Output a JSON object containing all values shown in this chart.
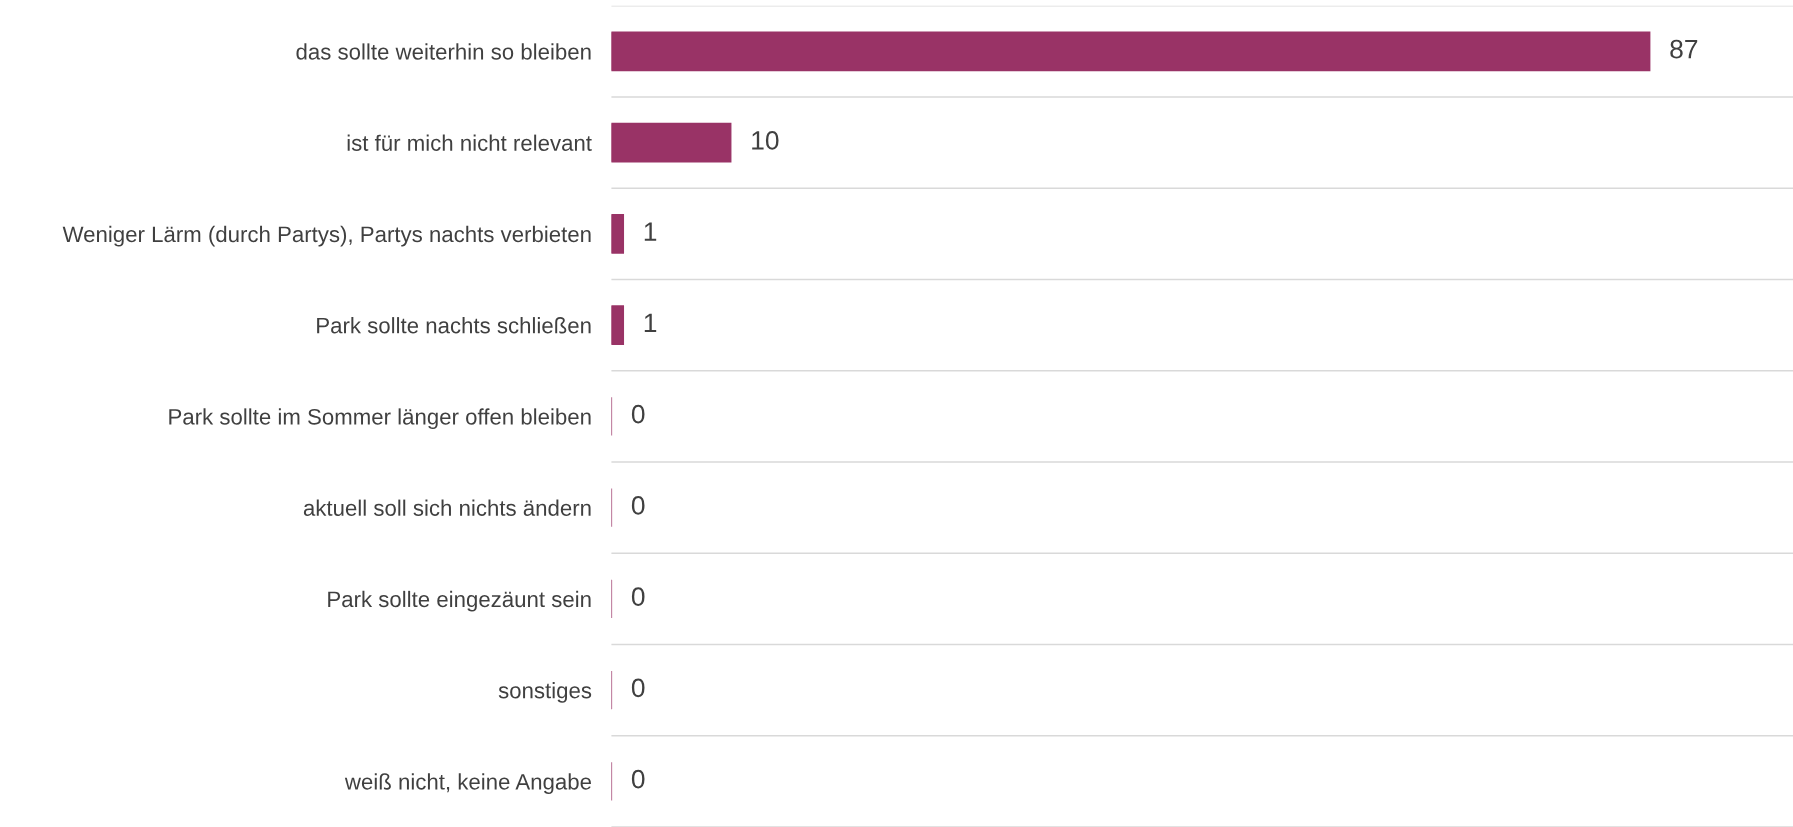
{
  "chart_data": {
    "type": "bar",
    "orientation": "horizontal",
    "categories": [
      "das sollte weiterhin so bleiben",
      "ist für mich nicht relevant",
      "Weniger Lärm (durch Partys), Partys nachts verbieten",
      "Park sollte nachts schließen",
      "Park sollte im Sommer länger offen bleiben",
      "aktuell soll sich nichts ändern",
      "Park sollte eingezäunt sein",
      "sonstiges",
      "weiß nicht, keine Angabe"
    ],
    "values": [
      87,
      10,
      1,
      1,
      0,
      0,
      0,
      0,
      0
    ],
    "color": "#993366",
    "data_labels": true,
    "grid": "y",
    "legend": false
  }
}
